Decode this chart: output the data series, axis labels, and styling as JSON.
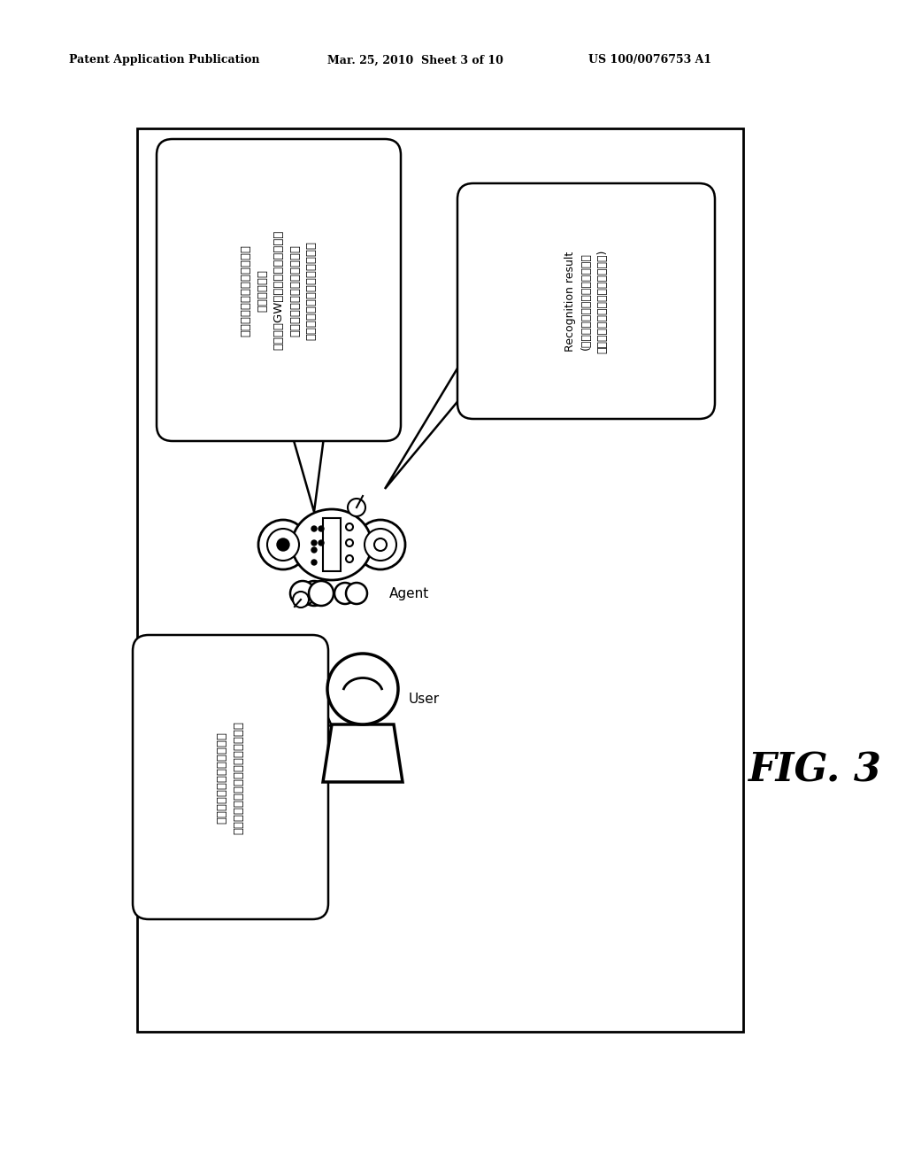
{
  "bg_color": "#ffffff",
  "header_left": "Patent Application Publication",
  "header_center": "Mar. 25, 2010  Sheet 3 of 10",
  "header_right": "US 100/0076753 A1",
  "fig_label": "FIG. 3",
  "agent_bubble_ja": "こんにちは、風邪などひいて\nないですか？\nもうすくGWですね。楽しみです。\n今度そっちに遅びに行くので\n楽しみにしていてくださいね。",
  "recognition_text_line1": "Recognition result",
  "recognition_text_line2": "(ひいてないよ、タイ大夫だよ。",
  "recognition_text_line3": "楽しみにしているよ、早くいてね)",
  "user_bubble_line1": "ひいてないよ、大丈夫だよ。",
  "user_bubble_line2": "楽しみにしているよ、早くきてね。",
  "agent_label": "Agent",
  "user_label": "User"
}
